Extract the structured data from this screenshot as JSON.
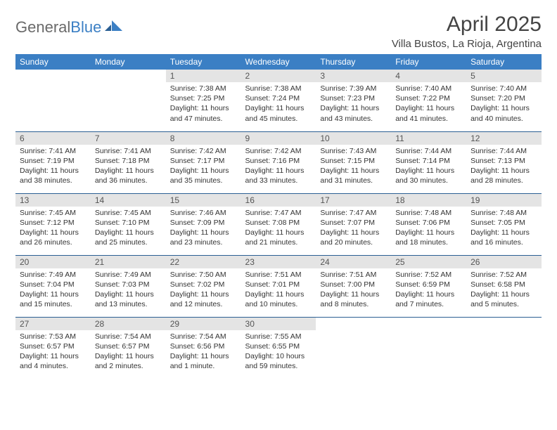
{
  "brand": {
    "text1": "General",
    "text2": "Blue"
  },
  "title": "April 2025",
  "location": "Villa Bustos, La Rioja, Argentina",
  "colors": {
    "header_bg": "#3b7fc4",
    "header_fg": "#ffffff",
    "daynum_bg": "#e4e4e4",
    "row_border": "#2b5f93",
    "text": "#333333",
    "logo_gray": "#6a6a6a"
  },
  "weekdays": [
    "Sunday",
    "Monday",
    "Tuesday",
    "Wednesday",
    "Thursday",
    "Friday",
    "Saturday"
  ],
  "weeks": [
    [
      null,
      null,
      {
        "n": "1",
        "sr": "7:38 AM",
        "ss": "7:25 PM",
        "dl": "11 hours and 47 minutes."
      },
      {
        "n": "2",
        "sr": "7:38 AM",
        "ss": "7:24 PM",
        "dl": "11 hours and 45 minutes."
      },
      {
        "n": "3",
        "sr": "7:39 AM",
        "ss": "7:23 PM",
        "dl": "11 hours and 43 minutes."
      },
      {
        "n": "4",
        "sr": "7:40 AM",
        "ss": "7:22 PM",
        "dl": "11 hours and 41 minutes."
      },
      {
        "n": "5",
        "sr": "7:40 AM",
        "ss": "7:20 PM",
        "dl": "11 hours and 40 minutes."
      }
    ],
    [
      {
        "n": "6",
        "sr": "7:41 AM",
        "ss": "7:19 PM",
        "dl": "11 hours and 38 minutes."
      },
      {
        "n": "7",
        "sr": "7:41 AM",
        "ss": "7:18 PM",
        "dl": "11 hours and 36 minutes."
      },
      {
        "n": "8",
        "sr": "7:42 AM",
        "ss": "7:17 PM",
        "dl": "11 hours and 35 minutes."
      },
      {
        "n": "9",
        "sr": "7:42 AM",
        "ss": "7:16 PM",
        "dl": "11 hours and 33 minutes."
      },
      {
        "n": "10",
        "sr": "7:43 AM",
        "ss": "7:15 PM",
        "dl": "11 hours and 31 minutes."
      },
      {
        "n": "11",
        "sr": "7:44 AM",
        "ss": "7:14 PM",
        "dl": "11 hours and 30 minutes."
      },
      {
        "n": "12",
        "sr": "7:44 AM",
        "ss": "7:13 PM",
        "dl": "11 hours and 28 minutes."
      }
    ],
    [
      {
        "n": "13",
        "sr": "7:45 AM",
        "ss": "7:12 PM",
        "dl": "11 hours and 26 minutes."
      },
      {
        "n": "14",
        "sr": "7:45 AM",
        "ss": "7:10 PM",
        "dl": "11 hours and 25 minutes."
      },
      {
        "n": "15",
        "sr": "7:46 AM",
        "ss": "7:09 PM",
        "dl": "11 hours and 23 minutes."
      },
      {
        "n": "16",
        "sr": "7:47 AM",
        "ss": "7:08 PM",
        "dl": "11 hours and 21 minutes."
      },
      {
        "n": "17",
        "sr": "7:47 AM",
        "ss": "7:07 PM",
        "dl": "11 hours and 20 minutes."
      },
      {
        "n": "18",
        "sr": "7:48 AM",
        "ss": "7:06 PM",
        "dl": "11 hours and 18 minutes."
      },
      {
        "n": "19",
        "sr": "7:48 AM",
        "ss": "7:05 PM",
        "dl": "11 hours and 16 minutes."
      }
    ],
    [
      {
        "n": "20",
        "sr": "7:49 AM",
        "ss": "7:04 PM",
        "dl": "11 hours and 15 minutes."
      },
      {
        "n": "21",
        "sr": "7:49 AM",
        "ss": "7:03 PM",
        "dl": "11 hours and 13 minutes."
      },
      {
        "n": "22",
        "sr": "7:50 AM",
        "ss": "7:02 PM",
        "dl": "11 hours and 12 minutes."
      },
      {
        "n": "23",
        "sr": "7:51 AM",
        "ss": "7:01 PM",
        "dl": "11 hours and 10 minutes."
      },
      {
        "n": "24",
        "sr": "7:51 AM",
        "ss": "7:00 PM",
        "dl": "11 hours and 8 minutes."
      },
      {
        "n": "25",
        "sr": "7:52 AM",
        "ss": "6:59 PM",
        "dl": "11 hours and 7 minutes."
      },
      {
        "n": "26",
        "sr": "7:52 AM",
        "ss": "6:58 PM",
        "dl": "11 hours and 5 minutes."
      }
    ],
    [
      {
        "n": "27",
        "sr": "7:53 AM",
        "ss": "6:57 PM",
        "dl": "11 hours and 4 minutes."
      },
      {
        "n": "28",
        "sr": "7:54 AM",
        "ss": "6:57 PM",
        "dl": "11 hours and 2 minutes."
      },
      {
        "n": "29",
        "sr": "7:54 AM",
        "ss": "6:56 PM",
        "dl": "11 hours and 1 minute."
      },
      {
        "n": "30",
        "sr": "7:55 AM",
        "ss": "6:55 PM",
        "dl": "10 hours and 59 minutes."
      },
      null,
      null,
      null
    ]
  ],
  "labels": {
    "sunrise": "Sunrise: ",
    "sunset": "Sunset: ",
    "daylight": "Daylight: "
  }
}
